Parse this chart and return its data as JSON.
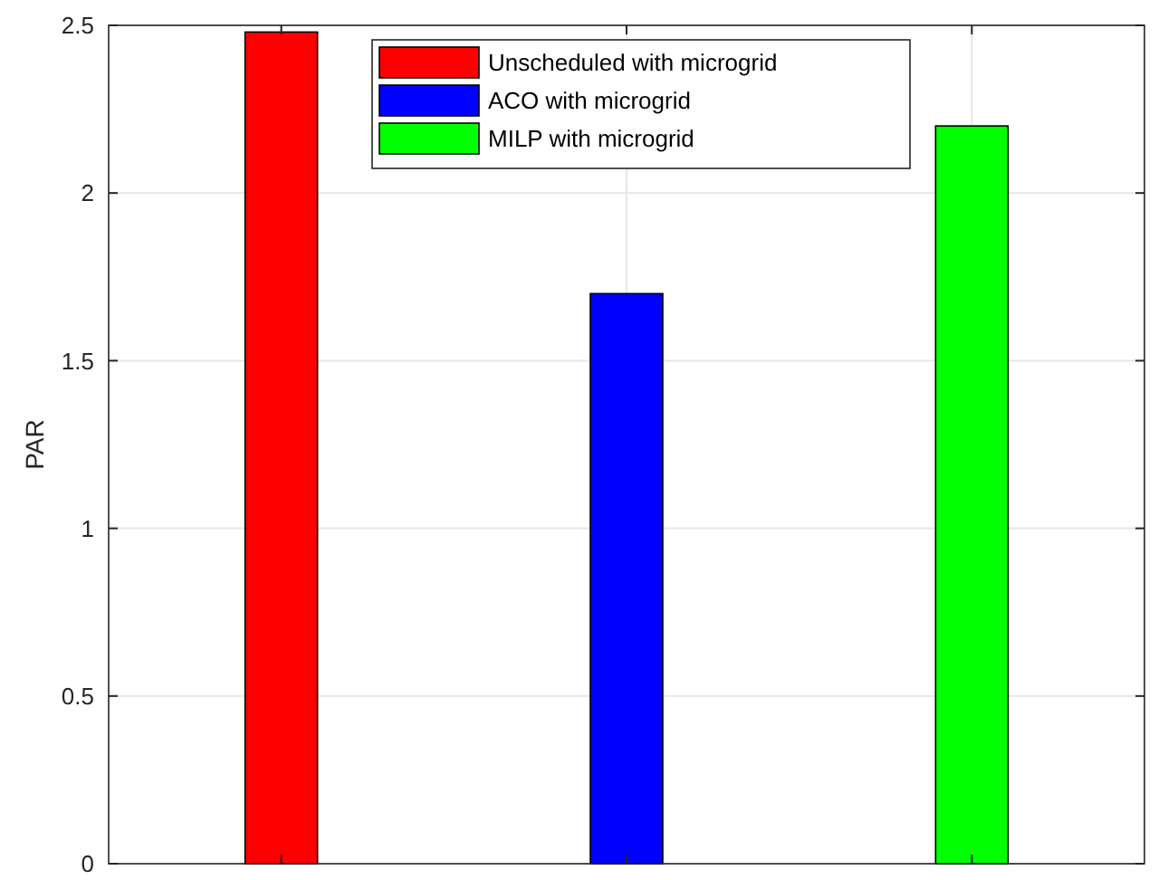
{
  "chart_data": {
    "type": "bar",
    "ylabel": "PAR",
    "categories": [
      null,
      null,
      null
    ],
    "series": [
      {
        "name": "Unscheduled with microgrid",
        "color": "#ff0000",
        "values": [
          2.48,
          null,
          null
        ]
      },
      {
        "name": "ACO with microgrid",
        "color": "#0000ff",
        "values": [
          null,
          1.7,
          null
        ]
      },
      {
        "name": "MILP with microgrid",
        "color": "#00ff00",
        "values": [
          null,
          null,
          2.2
        ]
      }
    ],
    "ylim": [
      0,
      2.5
    ],
    "yticks": [
      0,
      0.5,
      1,
      1.5,
      2,
      2.5
    ],
    "grid": true,
    "legend": "top"
  }
}
